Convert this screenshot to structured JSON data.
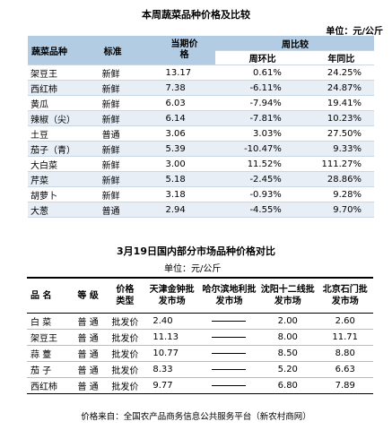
{
  "table1": {
    "title": "本周蔬菜品种价格及比较",
    "unit": "单位：元/公斤",
    "headers": {
      "name": "蔬菜品种",
      "standard": "标准",
      "price": "当期价格",
      "compare": "周比较",
      "mom": "周环比",
      "yoy": "年同比"
    },
    "rows": [
      {
        "name": "架豆王",
        "standard": "新鲜",
        "price": "13.17",
        "mom": "0.61%",
        "yoy": "24.25%"
      },
      {
        "name": "西红柿",
        "standard": "新鲜",
        "price": "7.38",
        "mom": "-6.11%",
        "yoy": "24.87%"
      },
      {
        "name": "黄瓜",
        "standard": "新鲜",
        "price": "6.03",
        "mom": "-7.94%",
        "yoy": "19.41%"
      },
      {
        "name": "辣椒（尖）",
        "standard": "新鲜",
        "price": "6.14",
        "mom": "-7.81%",
        "yoy": "10.23%"
      },
      {
        "name": "土豆",
        "standard": "普通",
        "price": "3.06",
        "mom": "3.03%",
        "yoy": "27.50%"
      },
      {
        "name": "茄子（青）",
        "standard": "新鲜",
        "price": "5.39",
        "mom": "-10.47%",
        "yoy": "9.33%"
      },
      {
        "name": "大白菜",
        "standard": "新鲜",
        "price": "3.00",
        "mom": "11.52%",
        "yoy": "111.27%"
      },
      {
        "name": "芹菜",
        "standard": "新鲜",
        "price": "5.18",
        "mom": "-2.45%",
        "yoy": "28.86%"
      },
      {
        "name": "胡萝卜",
        "standard": "新鲜",
        "price": "3.18",
        "mom": "-0.93%",
        "yoy": "9.28%"
      },
      {
        "name": "大葱",
        "standard": "普通",
        "price": "2.94",
        "mom": "-4.55%",
        "yoy": "9.70%"
      }
    ]
  },
  "table2": {
    "title": "3月19日国内部分市场品种价格对比",
    "unit": "单位：元/公斤",
    "headers": {
      "name": "品  名",
      "grade": "等  级",
      "price_type": "价格类型",
      "tianjin": "天津金钟批发市场",
      "harbin": "哈尔滨地利批发市场",
      "shenyang": "沈阳十二线批发市场",
      "beijing": "北京石门批发市场"
    },
    "rows": [
      {
        "name": "白  菜",
        "grade": "普  通",
        "type": "批发价",
        "tianjin": "2.40",
        "shenyang": "2.00",
        "beijing": "2.60"
      },
      {
        "name": "架豆王",
        "grade": "普  通",
        "type": "批发价",
        "tianjin": "11.13",
        "shenyang": "8.00",
        "beijing": "11.71"
      },
      {
        "name": "蒜  薹",
        "grade": "普  通",
        "type": "批发价",
        "tianjin": "10.77",
        "shenyang": "8.50",
        "beijing": "8.80"
      },
      {
        "name": "茄  子",
        "grade": "普  通",
        "type": "批发价",
        "tianjin": "8.33",
        "shenyang": "5.20",
        "beijing": "6.63"
      },
      {
        "name": "西红柿",
        "grade": "普  通",
        "type": "批发价",
        "tianjin": "9.77",
        "shenyang": "6.80",
        "beijing": "7.89"
      }
    ]
  },
  "footer": "价格来自：全国农产品商务信息公共服务平台（新农村商网）"
}
